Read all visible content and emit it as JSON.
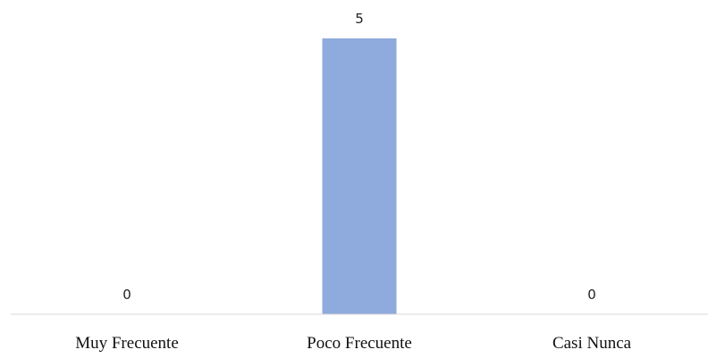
{
  "chart_data": {
    "type": "bar",
    "categories": [
      "Muy Frecuente",
      "Poco Frecuente",
      "Casi Nunca"
    ],
    "values": [
      0,
      5,
      0
    ],
    "data_labels": [
      "0",
      "5",
      "0"
    ],
    "title": "",
    "xlabel": "",
    "ylabel": "",
    "ylim": [
      0,
      5
    ],
    "grid": false,
    "legend": "none",
    "bar_color": "#8FAADC",
    "axis_color": "#D9D9D9"
  }
}
